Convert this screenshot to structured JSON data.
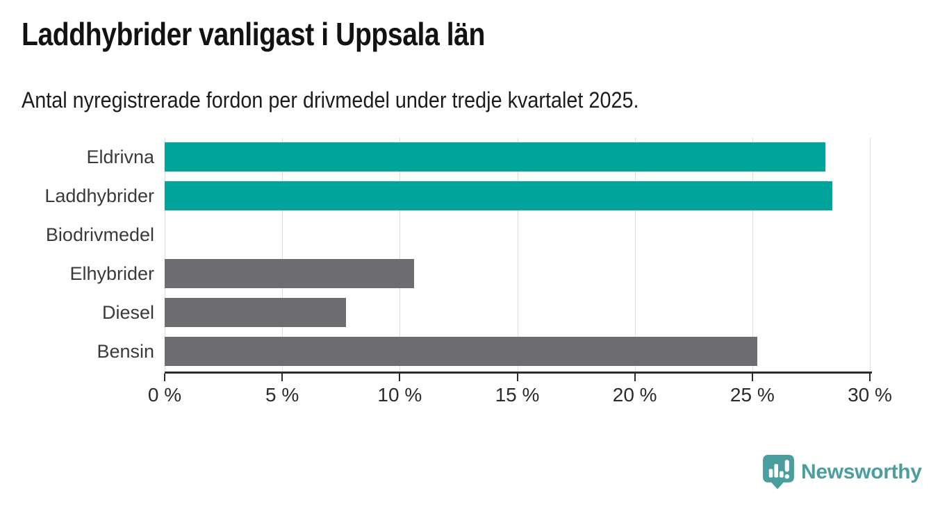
{
  "header": {
    "title": "Laddhybrider vanligast i Uppsala län",
    "subtitle": "Antal nyregistrerade fordon per drivmedel under tredje kvartalet 2025."
  },
  "chart_data": {
    "type": "bar",
    "orientation": "horizontal",
    "title": "Laddhybrider vanligast i Uppsala län",
    "subtitle": "Antal nyregistrerade fordon per drivmedel under tredje kvartalet 2025.",
    "categories": [
      "Eldrivna",
      "Laddhybrider",
      "Biodrivmedel",
      "Elhybrider",
      "Diesel",
      "Bensin"
    ],
    "values": [
      28.1,
      28.4,
      0,
      10.6,
      7.7,
      25.2
    ],
    "unit": "%",
    "bar_colors": [
      "#00a49b",
      "#00a49b",
      "#6d6c71",
      "#6d6c71",
      "#6d6c71",
      "#6d6c71"
    ],
    "xlabel": "",
    "ylabel": "",
    "xlim": [
      0,
      30
    ],
    "x_ticks": [
      {
        "value": 0,
        "label": "0 %"
      },
      {
        "value": 5,
        "label": "5 %"
      },
      {
        "value": 10,
        "label": "10 %"
      },
      {
        "value": 15,
        "label": "15 %"
      },
      {
        "value": 20,
        "label": "20 %"
      },
      {
        "value": 25,
        "label": "25 %"
      },
      {
        "value": 30,
        "label": "30 %"
      }
    ],
    "grid": "vertical",
    "legend": "none"
  },
  "footer": {
    "brand": "Newsworthy"
  },
  "colors": {
    "highlight_teal": "#00a49b",
    "neutral_gray": "#6d6c71",
    "gridline": "#dedede",
    "axis": "#2b2b2b",
    "title_text": "#121212",
    "label_text": "#3a3a3a",
    "brand_teal": "#4a9e9d",
    "background": "#ffffff"
  }
}
